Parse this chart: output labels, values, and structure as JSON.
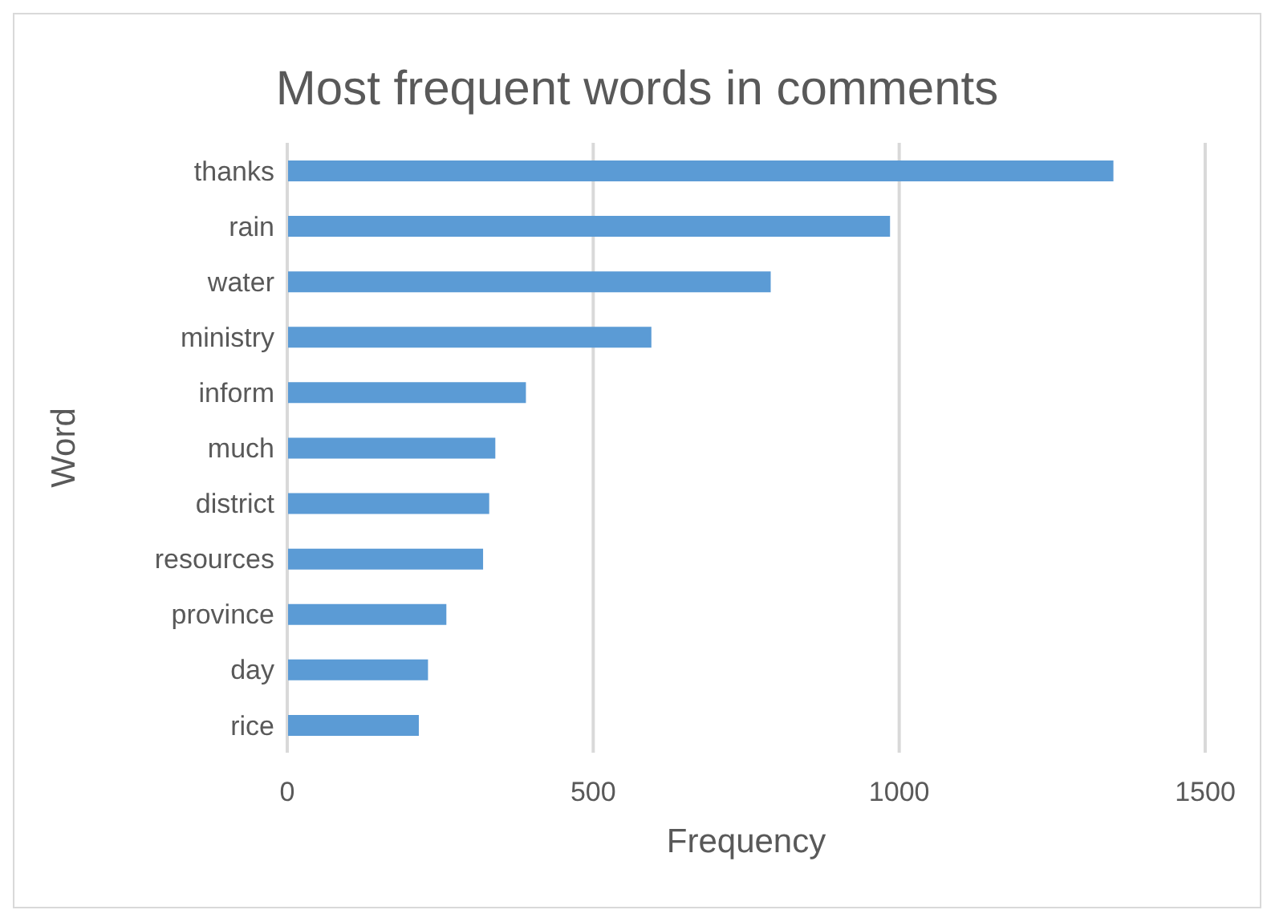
{
  "chart_data": {
    "type": "bar",
    "orientation": "horizontal",
    "title": "Most frequent words in comments",
    "xlabel": "Frequency",
    "ylabel": "Word",
    "categories": [
      "thanks",
      "rain",
      "water",
      "ministry",
      "inform",
      "much",
      "district",
      "resources",
      "province",
      "day",
      "rice"
    ],
    "values": [
      1350,
      985,
      790,
      595,
      390,
      340,
      330,
      320,
      260,
      230,
      215
    ],
    "color": "#5b9bd5",
    "xlim": [
      0,
      1500
    ],
    "xticks": [
      0,
      500,
      1000,
      1500
    ],
    "grid": "x"
  }
}
